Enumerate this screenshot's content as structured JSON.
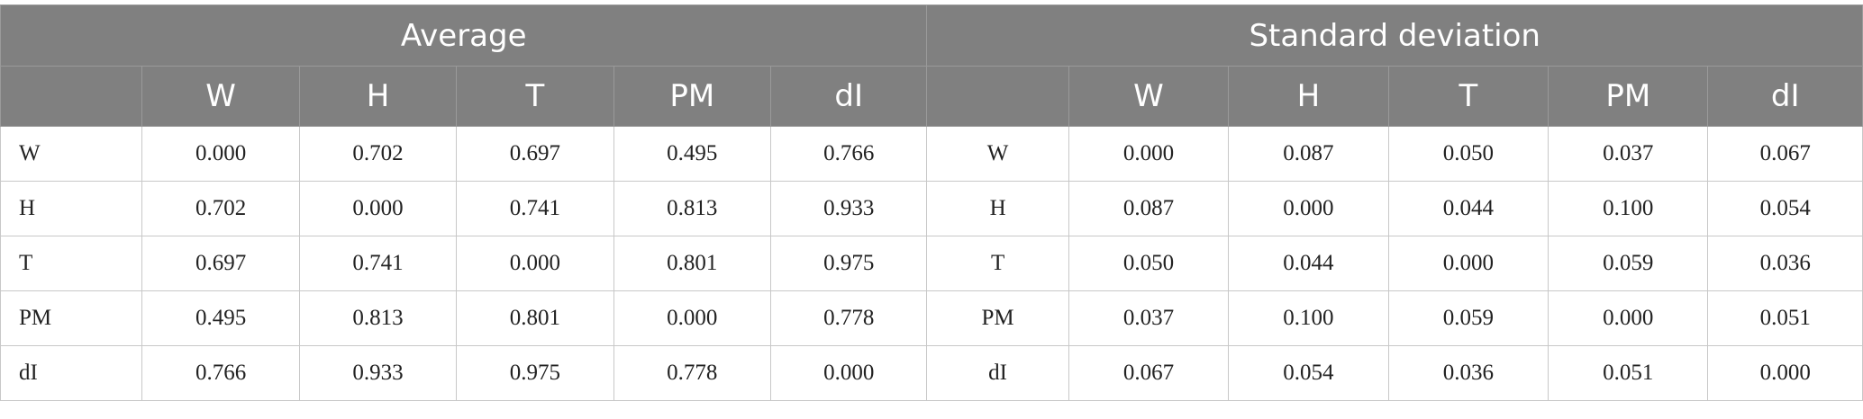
{
  "group_headers": [
    "Average",
    "Standard deviation"
  ],
  "column_headers": {
    "average": [
      "",
      "W",
      "H",
      "T",
      "PM",
      "dI"
    ],
    "standard_deviation": [
      "",
      "W",
      "H",
      "T",
      "PM",
      "dI"
    ]
  },
  "rows": [
    {
      "label": "W",
      "average": [
        "0.000",
        "0.702",
        "0.697",
        "0.495",
        "0.766"
      ],
      "sd_label": "W",
      "standard_deviation": [
        "0.000",
        "0.087",
        "0.050",
        "0.037",
        "0.067"
      ]
    },
    {
      "label": "H",
      "average": [
        "0.702",
        "0.000",
        "0.741",
        "0.813",
        "0.933"
      ],
      "sd_label": "H",
      "standard_deviation": [
        "0.087",
        "0.000",
        "0.044",
        "0.100",
        "0.054"
      ]
    },
    {
      "label": "T",
      "average": [
        "0.697",
        "0.741",
        "0.000",
        "0.801",
        "0.975"
      ],
      "sd_label": "T",
      "standard_deviation": [
        "0.050",
        "0.044",
        "0.000",
        "0.059",
        "0.036"
      ]
    },
    {
      "label": "PM",
      "average": [
        "0.495",
        "0.813",
        "0.801",
        "0.000",
        "0.778"
      ],
      "sd_label": "PM",
      "standard_deviation": [
        "0.037",
        "0.100",
        "0.059",
        "0.000",
        "0.051"
      ]
    },
    {
      "label": "dI",
      "average": [
        "0.766",
        "0.933",
        "0.975",
        "0.778",
        "0.000"
      ],
      "sd_label": "dI",
      "standard_deviation": [
        "0.067",
        "0.054",
        "0.036",
        "0.051",
        "0.000"
      ]
    }
  ],
  "colors": {
    "header_background": "#808080",
    "header_text": "#ffffff",
    "grid_line": "#c8c8c8",
    "body_text": "#222222"
  }
}
